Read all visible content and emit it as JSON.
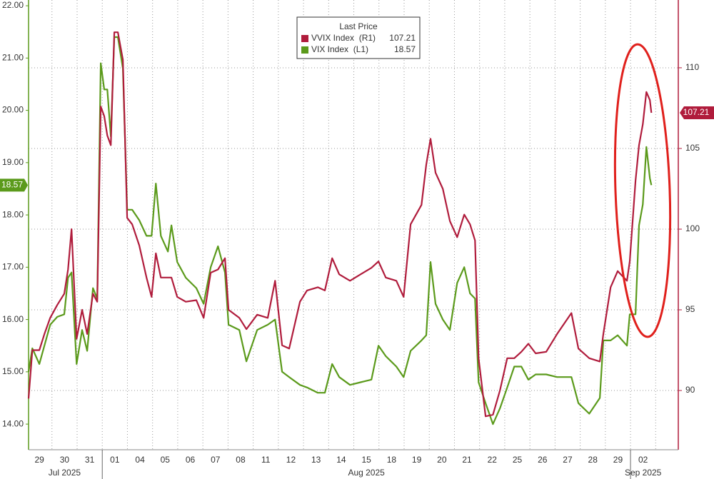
{
  "chart_data": {
    "type": "line",
    "legend_title": "Last Price",
    "categories": [
      "29",
      "30",
      "31",
      "01",
      "04",
      "05",
      "06",
      "07",
      "08",
      "11",
      "12",
      "13",
      "14",
      "15",
      "18",
      "19",
      "20",
      "21",
      "22",
      "25",
      "26",
      "27",
      "28",
      "29",
      "02"
    ],
    "x_group_labels": [
      "Jul 2025",
      "Aug 2025",
      "Sep 2025"
    ],
    "x": [
      -0.43,
      -0.28,
      0,
      0.2,
      0.43,
      0.71,
      0.99,
      1.14,
      1.28,
      1.48,
      1.7,
      1.9,
      2.13,
      2.3,
      2.44,
      2.58,
      2.7,
      2.84,
      2.98,
      3.12,
      3.32,
      3.49,
      3.69,
      3.97,
      4.26,
      4.46,
      4.63,
      4.83,
      5.11,
      5.25,
      5.48,
      5.82,
      6.24,
      6.53,
      6.81,
      7.1,
      7.38,
      7.52,
      7.95,
      8.23,
      8.66,
      9.08,
      9.37,
      9.65,
      9.93,
      10.36,
      10.64,
      11.07,
      11.35,
      11.64,
      11.92,
      12.35,
      12.77,
      13.2,
      13.48,
      13.77,
      14.19,
      14.48,
      14.76,
      15.19,
      15.38,
      15.55,
      15.75,
      16.04,
      16.32,
      16.61,
      16.89,
      17.12,
      17.32,
      17.46,
      17.74,
      18.03,
      18.31,
      18.6,
      18.88,
      19.16,
      19.44,
      19.73,
      20.15,
      20.58,
      21.15,
      21.43,
      21.86,
      22.28,
      22.42,
      22.71,
      22.99,
      23.36,
      23.47,
      23.7,
      23.84,
      23.99,
      24.13,
      24.27,
      24.33
    ],
    "xlim": [
      -0.43,
      25.4
    ],
    "ylim": [
      13.51,
      22.11
    ],
    "yticks": [
      {
        "value": 14,
        "label": "14.00"
      },
      {
        "value": 15,
        "label": "15.00"
      },
      {
        "value": 16,
        "label": "16.00"
      },
      {
        "value": 17,
        "label": "17.00"
      },
      {
        "value": 18,
        "label": "18.00"
      },
      {
        "value": 19,
        "label": "19.00"
      },
      {
        "value": 20,
        "label": "20.00"
      },
      {
        "value": 21,
        "label": "21.00"
      },
      {
        "value": 22,
        "label": "22.00"
      }
    ],
    "y2lim": [
      86.33,
      114.2
    ],
    "y2ticks": [
      90,
      95,
      100,
      105,
      110
    ],
    "grid": true,
    "series": [
      {
        "name": "VVIX Index  (R1)",
        "color": "#b01c3c",
        "axis": "y2",
        "last_value_label": "107.21",
        "values": [
          89.5,
          92.5,
          92.5,
          93.5,
          94.5,
          95.3,
          96.0,
          97.5,
          100.0,
          93.2,
          95.0,
          93.5,
          96.0,
          95.5,
          107.6,
          107.0,
          105.8,
          105.2,
          112.2,
          112.2,
          110.5,
          100.7,
          100.3,
          99.0,
          97.0,
          95.8,
          98.5,
          97.0,
          97.0,
          97.0,
          95.8,
          95.5,
          95.6,
          94.5,
          97.3,
          97.5,
          98.2,
          95.0,
          94.5,
          93.8,
          94.7,
          94.5,
          96.8,
          92.8,
          92.6,
          95.5,
          96.2,
          96.4,
          96.2,
          98.2,
          97.2,
          96.8,
          97.2,
          97.6,
          98.0,
          97.0,
          96.8,
          95.8,
          100.3,
          101.5,
          104.0,
          105.6,
          103.5,
          102.5,
          100.5,
          99.5,
          100.9,
          100.3,
          99.3,
          92.0,
          88.4,
          88.5,
          90.0,
          92.0,
          92.0,
          92.4,
          92.9,
          92.3,
          92.4,
          93.5,
          94.8,
          92.6,
          92.0,
          91.8,
          93.5,
          96.4,
          97.4,
          96.8,
          98.0,
          103.0,
          105.2,
          106.5,
          108.5,
          108.0,
          107.21
        ]
      },
      {
        "name": "VIX Index  (L1)",
        "color": "#5b9a1b",
        "last_value_label": "18.57",
        "values": [
          15.0,
          15.45,
          15.15,
          15.5,
          15.9,
          16.05,
          16.1,
          16.8,
          16.9,
          15.15,
          15.8,
          15.4,
          16.6,
          16.4,
          20.9,
          20.4,
          20.4,
          19.5,
          21.4,
          21.4,
          20.8,
          18.1,
          18.1,
          17.9,
          17.6,
          17.6,
          18.6,
          17.6,
          17.3,
          17.8,
          17.1,
          16.8,
          16.6,
          16.3,
          17.0,
          17.4,
          16.9,
          15.9,
          15.8,
          15.2,
          15.8,
          15.9,
          16.0,
          15.0,
          14.9,
          14.75,
          14.7,
          14.6,
          14.6,
          15.15,
          14.9,
          14.75,
          14.8,
          14.85,
          15.5,
          15.3,
          15.1,
          14.9,
          15.4,
          15.6,
          15.7,
          17.1,
          16.3,
          16.0,
          15.8,
          16.7,
          17.0,
          16.5,
          16.4,
          14.8,
          14.4,
          14.0,
          14.3,
          14.7,
          15.1,
          15.1,
          14.85,
          14.95,
          14.95,
          14.9,
          14.9,
          14.4,
          14.2,
          14.5,
          15.6,
          15.6,
          15.7,
          15.5,
          16.1,
          16.1,
          17.8,
          18.2,
          19.3,
          18.7,
          18.57
        ]
      }
    ]
  }
}
